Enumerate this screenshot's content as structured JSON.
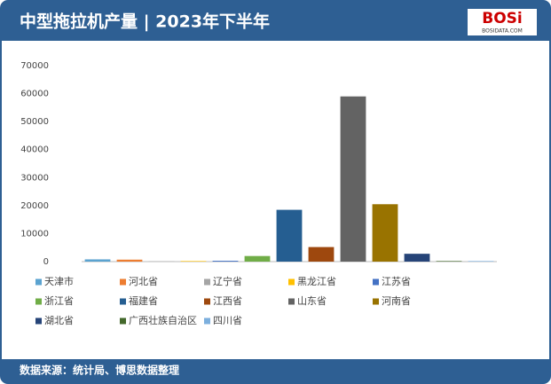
{
  "chart_data": {
    "type": "bar",
    "title": "中型拖拉机产量 | 2023年下半年",
    "logo": "BOSi",
    "logo_sub": "BOSIDATA.COM",
    "source": "数据来源：统计局、博思数据整理",
    "ylim": [
      0,
      70000
    ],
    "yticks": [
      0,
      10000,
      20000,
      30000,
      40000,
      50000,
      60000,
      70000
    ],
    "series": [
      {
        "name": "天津市",
        "color": "#5ba3d0",
        "values": [
          800
        ]
      },
      {
        "name": "河北省",
        "color": "#ed7d31",
        "values": [
          700
        ]
      },
      {
        "name": "辽宁省",
        "color": "#a5a5a5",
        "values": [
          100
        ]
      },
      {
        "name": "黑龙江省",
        "color": "#ffc000",
        "values": [
          200
        ]
      },
      {
        "name": "江苏省",
        "color": "#4472c4",
        "values": [
          300
        ]
      },
      {
        "name": "浙江省",
        "color": "#70ad47",
        "values": [
          2000
        ]
      },
      {
        "name": "福建省",
        "color": "#255e91",
        "values": [
          18500
        ]
      },
      {
        "name": "江西省",
        "color": "#9e480e",
        "values": [
          5200
        ]
      },
      {
        "name": "山东省",
        "color": "#636363",
        "values": [
          59000
        ]
      },
      {
        "name": "河南省",
        "color": "#997300",
        "values": [
          20500
        ]
      },
      {
        "name": "湖北省",
        "color": "#264478",
        "values": [
          2800
        ]
      },
      {
        "name": "广西壮族自治区",
        "color": "#43682b",
        "values": [
          200
        ]
      },
      {
        "name": "四川省",
        "color": "#7cafdd",
        "values": [
          200
        ]
      }
    ]
  }
}
